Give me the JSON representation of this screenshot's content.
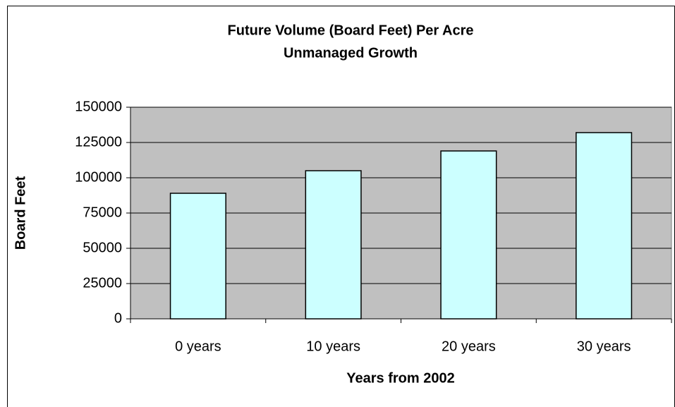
{
  "chart_data": {
    "type": "bar",
    "title": "Future Volume (Board Feet) Per Acre",
    "subtitle": "Unmanaged Growth",
    "x_label": "Years from 2002",
    "y_label": "Board Feet",
    "categories": [
      "0 years",
      "10 years",
      "20 years",
      "30 years"
    ],
    "values": [
      89000,
      105000,
      119000,
      132000
    ],
    "color": "#ccffff",
    "ylim": [
      0,
      150000
    ],
    "yticks": [
      0,
      25000,
      50000,
      75000,
      100000,
      125000,
      150000
    ],
    "grid": true
  }
}
